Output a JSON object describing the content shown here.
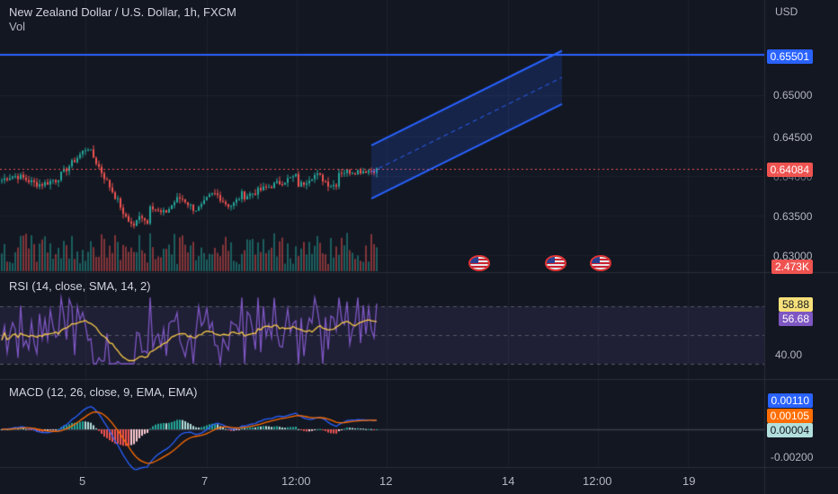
{
  "header": {
    "symbol_title": "New Zealand Dollar / U.S. Dollar, 1h, FXCM",
    "volume_label": "Vol"
  },
  "price_axis": {
    "currency": "USD",
    "ticks": [
      "0.65000",
      "0.64500",
      "0.63500",
      "0.63000"
    ],
    "hline_badge": "0.65501",
    "last_price_badge": "0.64084",
    "volume_badge": "2.473K",
    "partial_label": "0.64000"
  },
  "rsi": {
    "title": "RSI (14, close, SMA, 14, 2)",
    "rsi_value": "58.88",
    "sma_value": "56.68",
    "tick": "40.00",
    "upper": 70,
    "lower": 30
  },
  "macd": {
    "title": "MACD (12, 26, close, 9, EMA, EMA)",
    "macd_value": "0.00110",
    "signal_value": "0.00105",
    "hist_value": "0.00004",
    "tick": "-0.00200"
  },
  "time_axis": {
    "labels": [
      "5",
      "7",
      "12:00",
      "12",
      "14",
      "12:00",
      "19"
    ]
  },
  "events": [
    {
      "name": "us-economic-event"
    },
    {
      "name": "us-economic-event"
    },
    {
      "name": "us-economic-event"
    }
  ],
  "colors": {
    "background": "#131722",
    "up": "#26a69a",
    "down": "#ef5350",
    "hline": "#2962ff",
    "rsi_line": "#7e57c2",
    "rsi_sma": "#f7c948",
    "macd_line": "#2962ff",
    "signal_line": "#ff6d00"
  },
  "drawings": {
    "horizontal_line_price": 0.65501,
    "regression_channel": {
      "start_price": 0.6405,
      "end_price": 0.6522,
      "upper_offset": 0.0033
    }
  }
}
